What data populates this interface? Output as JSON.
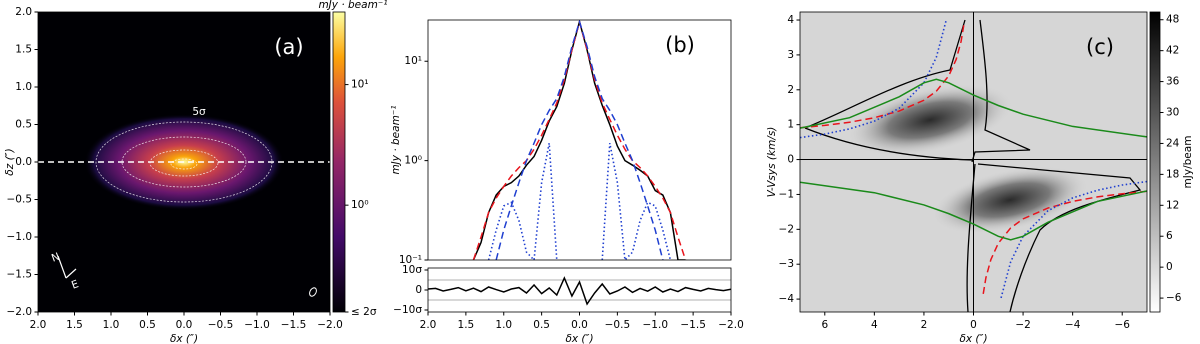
{
  "chart_data": [
    {
      "type": "image",
      "label": "(a)",
      "contour_label": "5σ",
      "compass": [
        "N",
        "E"
      ],
      "xlabel": "δx (″)",
      "ylabel": "δz (″)",
      "xlim": [
        2,
        -2
      ],
      "ylim": [
        -2,
        2
      ],
      "xticks": [
        {
          "value": 2,
          "label": "2.0"
        },
        {
          "value": 1.5,
          "label": "1.5"
        },
        {
          "value": 1,
          "label": "1.0"
        },
        {
          "value": 0.5,
          "label": "0.5"
        },
        {
          "value": 0,
          "label": "0.0"
        },
        {
          "value": -0.5,
          "label": "−0.5"
        },
        {
          "value": -1,
          "label": "−1.0"
        },
        {
          "value": -1.5,
          "label": "−1.5"
        },
        {
          "value": -2,
          "label": "−2.0"
        }
      ],
      "yticks": [
        {
          "value": 2,
          "label": "2.0"
        },
        {
          "value": 1.5,
          "label": "1.5"
        },
        {
          "value": 1,
          "label": "1.0"
        },
        {
          "value": 0.5,
          "label": "0.5"
        },
        {
          "value": 0,
          "label": "0.0"
        },
        {
          "value": -0.5,
          "label": "−0.5"
        },
        {
          "value": -1,
          "label": "−1.0"
        },
        {
          "value": -1.5,
          "label": "−1.5"
        },
        {
          "value": -2,
          "label": "−2.0"
        }
      ],
      "hlines": [
        0
      ],
      "hline_color": "#ffffff",
      "colorbar": {
        "label": "mJy · beam⁻¹",
        "log": true,
        "lim": [
          0.13,
          40
        ],
        "ticks": [
          {
            "value": 10,
            "label": "10¹"
          },
          {
            "value": 1,
            "label": "10⁰"
          },
          {
            "value": 0.13,
            "label": "≤ 2σ"
          }
        ]
      }
    },
    {
      "type": "line",
      "label": "(b)",
      "ylabel": "mJy · beam⁻¹",
      "log": true,
      "xlim": [
        2,
        -2
      ],
      "ylim": [
        0.1,
        26
      ],
      "yticks": [
        {
          "value": 10,
          "label": "10¹"
        },
        {
          "value": 1,
          "label": "10⁰"
        },
        {
          "value": 0.1,
          "label": "10⁻¹"
        }
      ],
      "x": [
        1.4,
        1.3,
        1.2,
        1.1,
        1.0,
        0.9,
        0.8,
        0.7,
        0.6,
        0.5,
        0.4,
        0.3,
        0.2,
        0.1,
        0.0,
        -0.1,
        -0.2,
        -0.3,
        -0.4,
        -0.5,
        -0.6,
        -0.7,
        -0.8,
        -0.9,
        -1.0,
        -1.1,
        -1.2,
        -1.3,
        -1.4
      ],
      "series": [
        {
          "color": "#000000",
          "dash": "solid",
          "values": [
            0.1,
            0.15,
            0.3,
            0.45,
            0.55,
            0.6,
            0.7,
            0.9,
            1.1,
            1.6,
            2.5,
            3.5,
            6,
            13,
            25,
            13,
            6,
            3.6,
            2.3,
            1.4,
            1.0,
            0.9,
            0.8,
            0.7,
            0.5,
            0.45,
            0.3,
            0.1,
            0.1
          ]
        },
        {
          "color": "#e8141c",
          "dash": "dashed",
          "values": [
            0.1,
            0.17,
            0.3,
            0.42,
            0.55,
            0.7,
            0.85,
            1.0,
            1.3,
            1.8,
            2.6,
            3.8,
            6.5,
            13,
            25,
            13,
            6.5,
            3.8,
            2.6,
            1.8,
            1.3,
            1.0,
            0.85,
            0.7,
            0.55,
            0.42,
            0.3,
            0.17,
            0.1
          ]
        },
        {
          "color": "#1f3fd0",
          "dash": "dashed",
          "values": [
            null,
            null,
            null,
            0.1,
            0.2,
            0.35,
            0.6,
            1.0,
            1.5,
            2.3,
            3.2,
            4.2,
            7,
            14,
            25,
            14,
            7,
            4.2,
            3.2,
            2.3,
            1.5,
            1.0,
            0.6,
            0.35,
            0.2,
            0.1,
            null,
            null,
            null
          ]
        },
        {
          "color": "#1f3fd0",
          "dash": "dotted",
          "values": [
            null,
            null,
            0.1,
            0.2,
            0.35,
            0.38,
            0.25,
            0.12,
            0.1,
            0.6,
            1.5,
            0.1,
            null,
            null,
            null,
            null,
            null,
            0.1,
            1.5,
            0.6,
            0.1,
            0.12,
            0.25,
            0.38,
            0.35,
            0.2,
            0.1,
            null,
            null
          ]
        }
      ]
    },
    {
      "type": "line",
      "xlabel": "δx (″)",
      "xlim": [
        2,
        -2
      ],
      "ylim": [
        -11,
        11
      ],
      "xticks": [
        {
          "value": 2,
          "label": "2.0"
        },
        {
          "value": 1.5,
          "label": "1.5"
        },
        {
          "value": 1,
          "label": "1.0"
        },
        {
          "value": 0.5,
          "label": "0.5"
        },
        {
          "value": 0,
          "label": "0.0"
        },
        {
          "value": -0.5,
          "label": "−0.5"
        },
        {
          "value": -1,
          "label": "−1.0"
        },
        {
          "value": -1.5,
          "label": "−1.5"
        },
        {
          "value": -2,
          "label": "−2.0"
        }
      ],
      "yticks": [
        {
          "value": 10,
          "label": "10σ"
        },
        0,
        {
          "value": -10,
          "label": "−10σ"
        }
      ],
      "hlines": [
        5,
        -5
      ],
      "hline_color": "#b0b0b0",
      "x": [
        2.0,
        1.9,
        1.8,
        1.7,
        1.6,
        1.5,
        1.4,
        1.3,
        1.2,
        1.1,
        1.0,
        0.9,
        0.8,
        0.7,
        0.6,
        0.5,
        0.4,
        0.3,
        0.2,
        0.1,
        0.0,
        -0.1,
        -0.2,
        -0.3,
        -0.4,
        -0.5,
        -0.6,
        -0.7,
        -0.8,
        -0.9,
        -1.0,
        -1.1,
        -1.2,
        -1.3,
        -1.4,
        -1.5,
        -1.6,
        -1.7,
        -1.8,
        -1.9,
        -2.0
      ],
      "series": [
        {
          "color": "#000000",
          "dash": "solid",
          "values": [
            0.5,
            0.8,
            -0.5,
            0.3,
            1.2,
            -0.4,
            0.9,
            -0.8,
            1.5,
            0.2,
            -1.0,
            0.5,
            1.2,
            -1.5,
            2.5,
            -1.8,
            1.0,
            -2.5,
            6.0,
            -3.0,
            4.0,
            -7.0,
            -1.5,
            3.0,
            -2.0,
            -0.5,
            1.5,
            -1.2,
            0.8,
            -0.6,
            1.5,
            -1.0,
            0.5,
            -0.8,
            1.2,
            0.3,
            -0.5,
            0.8,
            0.2,
            -0.3,
            0.4
          ]
        }
      ]
    },
    {
      "type": "pv",
      "label": "(c)",
      "xlabel": "δx (″)",
      "ylabel": "V-Vsys (km/s)",
      "xlim": [
        7,
        -7
      ],
      "ylim": [
        -4.37,
        4.23
      ],
      "xticks": [
        6,
        4,
        2,
        0,
        {
          "value": -2,
          "label": "−2"
        },
        {
          "value": -4,
          "label": "−4"
        },
        {
          "value": -6,
          "label": "−6"
        }
      ],
      "yticks": [
        4,
        3,
        2,
        1,
        0,
        {
          "value": -1,
          "label": "−1"
        },
        {
          "value": -2,
          "label": "−2"
        },
        {
          "value": -3,
          "label": "−3"
        },
        {
          "value": -4,
          "label": "−4"
        }
      ],
      "hlines": [
        0
      ],
      "vlines": [
        0
      ],
      "hline_color": "#000000",
      "series": [
        {
          "color": "#e8141c",
          "dash": "dashed",
          "x": [
            7,
            6,
            5,
            4,
            3,
            2,
            1.5,
            1,
            0.7,
            0.5,
            0.37
          ],
          "values": [
            0.91,
            0.98,
            1.07,
            1.2,
            1.39,
            1.7,
            1.96,
            2.4,
            2.87,
            3.39,
            3.95
          ]
        },
        {
          "color": "#e8141c",
          "dash": "dashed",
          "x": [
            -7,
            -6,
            -5,
            -4,
            -3,
            -2,
            -1.5,
            -1,
            -0.7,
            -0.5,
            -0.37
          ],
          "values": [
            -0.91,
            -0.98,
            -1.07,
            -1.2,
            -1.39,
            -1.7,
            -1.96,
            -2.4,
            -2.87,
            -3.39,
            -3.95
          ]
        },
        {
          "color": "#1f3fd0",
          "dash": "dotted",
          "x": [
            7,
            6,
            5,
            4,
            3,
            2,
            1.5,
            1.1
          ],
          "values": [
            0.63,
            0.73,
            0.88,
            1.1,
            1.47,
            2.2,
            2.93,
            4.0
          ]
        },
        {
          "color": "#1f3fd0",
          "dash": "dotted",
          "x": [
            -7,
            -6,
            -5,
            -4,
            -3,
            -2,
            -1.5,
            -1.1
          ],
          "values": [
            -0.63,
            -0.73,
            -0.88,
            -1.1,
            -1.47,
            -2.2,
            -2.93,
            -4.0
          ]
        },
        {
          "color": "#1a8a1a",
          "dash": "solid",
          "x": [
            7,
            5,
            3,
            2,
            1.5,
            1,
            0,
            -1,
            -2,
            -4,
            -7
          ],
          "values": [
            0.9,
            1.2,
            1.8,
            2.2,
            2.3,
            2.2,
            1.85,
            1.55,
            1.3,
            0.95,
            0.65
          ]
        },
        {
          "color": "#1a8a1a",
          "dash": "solid",
          "x": [
            -7,
            -5,
            -3,
            -2,
            -1.5,
            -1,
            0,
            1,
            2,
            4,
            7
          ],
          "values": [
            -0.9,
            -1.2,
            -1.8,
            -2.2,
            -2.3,
            -2.2,
            -1.85,
            -1.55,
            -1.3,
            -0.95,
            -0.65
          ]
        }
      ],
      "colorbar": {
        "label": "mJy/beam",
        "log": false,
        "lim": [
          -8.7,
          49.5
        ],
        "ticks": [
          48,
          42,
          36,
          30,
          24,
          18,
          12,
          6,
          0,
          {
            "value": -6,
            "label": "−6"
          }
        ]
      }
    }
  ]
}
